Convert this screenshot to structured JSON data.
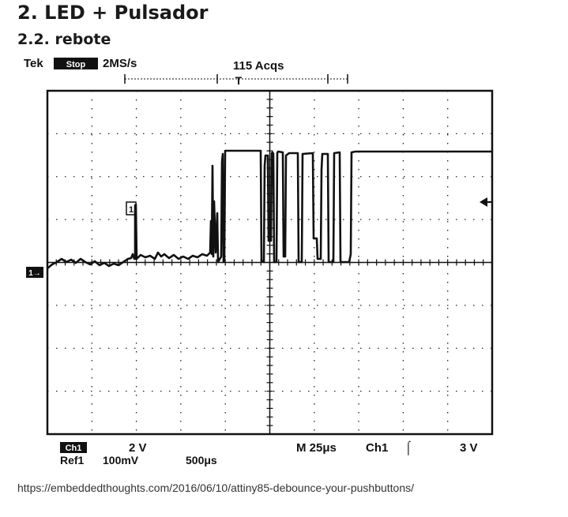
{
  "heading": "2. LED + Pulsador",
  "subheading": "2.2. rebote",
  "scope": {
    "brand": "Tek",
    "run_mode": "Stop",
    "sample_rate": "2MS/s",
    "acquisitions": "115 Acqs",
    "trigger_marker": "T",
    "ground_marker": "1→",
    "ref_marker": "1",
    "ch1_badge": "Ch1",
    "ref_label": "Ref1",
    "ch1_scale": "2 V",
    "ref_scale": "100mV",
    "ref_time": "500μs",
    "timebase": "M  25μs",
    "trigger_source": "Ch1",
    "trigger_slope": "⌠",
    "trigger_level": "3 V"
  },
  "source_url": "https://embeddedthoughts.com/2016/06/10/attiny85-debounce-your-pushbuttons/"
}
